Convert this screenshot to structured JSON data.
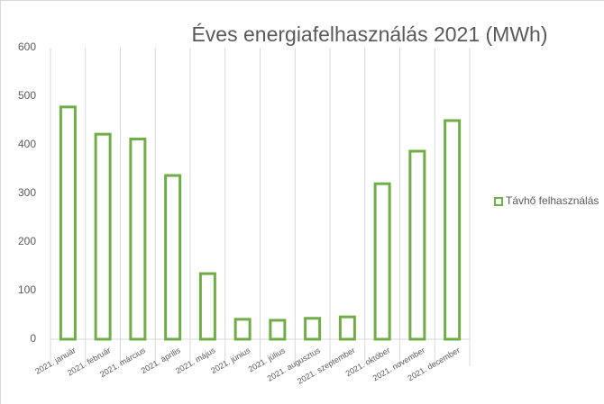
{
  "chart_data": {
    "type": "bar",
    "title": "Éves energiafelhasználás 2021 (MWh)",
    "categories": [
      "2021. január",
      "2021. február",
      "2021. március",
      "2021. április",
      "2021. május",
      "2021. június",
      "2021. július",
      "2021. augusztus",
      "2021. szeptember",
      "2021. október",
      "2021. november",
      "2021. december"
    ],
    "series": [
      {
        "name": "Távhő felhasználás",
        "color": "#70ad47",
        "values": [
          478,
          422,
          412,
          337,
          135,
          41,
          39,
          43,
          46,
          320,
          387,
          450
        ]
      }
    ],
    "ylim": [
      0,
      600
    ],
    "yticks": [
      0,
      100,
      200,
      300,
      400,
      500,
      600
    ],
    "grid": false,
    "legend": "right"
  }
}
